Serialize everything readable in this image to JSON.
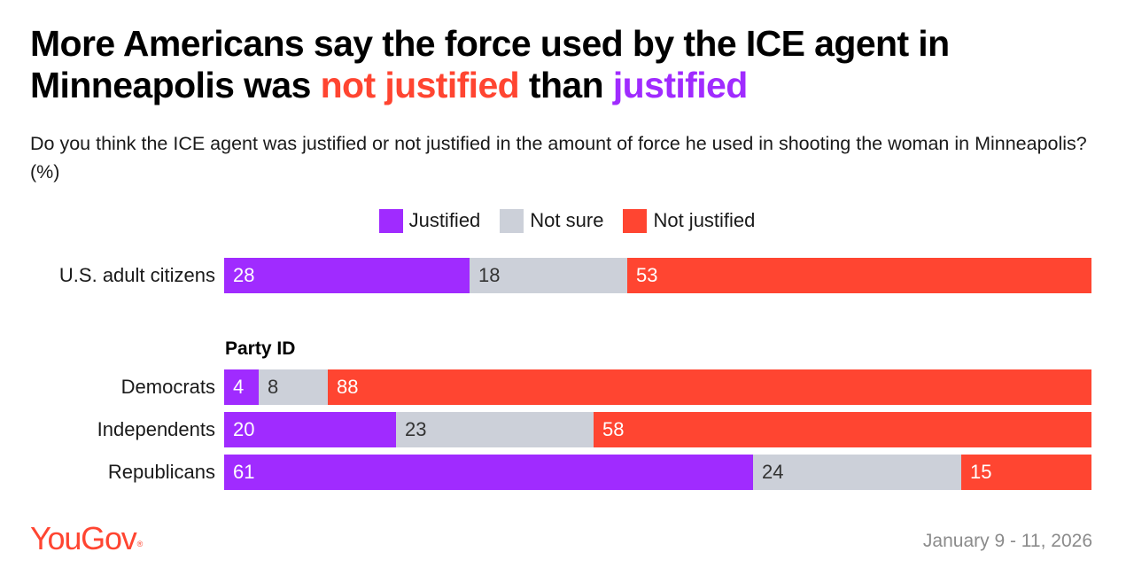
{
  "title": {
    "part1": "More Americans say the force used by the ICE agent in Minneapolis was",
    "highlight_red": "not justified",
    "part2": "than",
    "highlight_purple": "justified"
  },
  "subtitle": "Do you think the ICE agent was justified or not justified in the amount of force he used in shooting the woman in Minneapolis? (%)",
  "colors": {
    "justified": "#a02bff",
    "not_sure": "#ccd0d9",
    "not_justified": "#ff4531",
    "label_light": "#ffffff",
    "label_dark": "#333333"
  },
  "chart_data": {
    "type": "bar",
    "orientation": "horizontal",
    "stacked": true,
    "unit": "%",
    "legend_position": "top-center",
    "legend": [
      "Justified",
      "Not sure",
      "Not justified"
    ],
    "categories": [
      "U.S. adult citizens",
      "Democrats",
      "Independents",
      "Republicans"
    ],
    "section_label": "Party ID",
    "series": [
      {
        "name": "Justified",
        "values": [
          28,
          4,
          20,
          61
        ]
      },
      {
        "name": "Not sure",
        "values": [
          18,
          8,
          23,
          24
        ]
      },
      {
        "name": "Not justified",
        "values": [
          53,
          88,
          58,
          15
        ]
      }
    ]
  },
  "footer": {
    "logo": "YouGov",
    "logo_mark": "®",
    "date": "January 9 - 11, 2026"
  }
}
